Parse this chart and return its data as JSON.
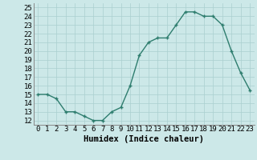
{
  "x": [
    0,
    1,
    2,
    3,
    4,
    5,
    6,
    7,
    8,
    9,
    10,
    11,
    12,
    13,
    14,
    15,
    16,
    17,
    18,
    19,
    20,
    21,
    22,
    23
  ],
  "y": [
    15,
    15,
    14.5,
    13,
    13,
    12.5,
    12,
    12,
    13,
    13.5,
    16,
    19.5,
    21,
    21.5,
    21.5,
    23,
    24.5,
    24.5,
    24,
    24,
    23,
    20,
    17.5,
    15.5
  ],
  "line_color": "#2e7d6e",
  "marker": "+",
  "bg_color": "#cce8e8",
  "grid_color": "#aacfcf",
  "xlabel": "Humidex (Indice chaleur)",
  "xlim": [
    -0.5,
    23.5
  ],
  "ylim": [
    11.5,
    25.5
  ],
  "xtick_labels": [
    "0",
    "1",
    "2",
    "3",
    "4",
    "5",
    "6",
    "7",
    "8",
    "9",
    "10",
    "11",
    "12",
    "13",
    "14",
    "15",
    "16",
    "17",
    "18",
    "19",
    "20",
    "21",
    "22",
    "23"
  ],
  "ytick_values": [
    12,
    13,
    14,
    15,
    16,
    17,
    18,
    19,
    20,
    21,
    22,
    23,
    24,
    25
  ],
  "xlabel_fontsize": 7.5,
  "tick_fontsize": 6.5
}
